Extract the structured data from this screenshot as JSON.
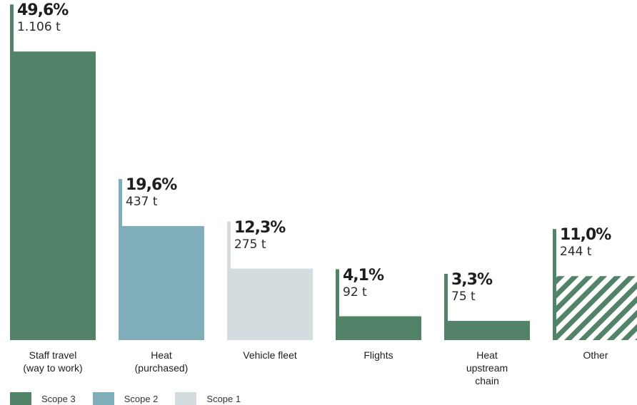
{
  "chart_data": {
    "type": "bar",
    "categories": [
      "Staff travel\n(way to work)",
      "Heat\n(purchased)",
      "Vehicle fleet",
      "Flights",
      "Heat\nupstream\nchain",
      "Other"
    ],
    "values": [
      49.6,
      19.6,
      12.3,
      4.1,
      3.3,
      11.0
    ],
    "percent_labels": [
      "49,6%",
      "19,6%",
      "12,3%",
      "4,1%",
      "3,3%",
      "11,0%"
    ],
    "tonnes_labels": [
      "1.106 t",
      "437 t",
      "275 t",
      "92 t",
      "75 t",
      "244 t"
    ],
    "scope": [
      "Scope 3",
      "Scope 2",
      "Scope 1",
      "Scope 3",
      "Scope 3",
      "Scope 3"
    ],
    "pattern": [
      "solid",
      "solid",
      "solid",
      "solid",
      "solid",
      "hatched"
    ],
    "ylim": [
      0,
      50
    ],
    "grid": false,
    "legend_position": "bottom-left"
  },
  "legend": [
    {
      "label": "Scope 3",
      "color": "#528268"
    },
    {
      "label": "Scope 2",
      "color": "#7fadba"
    },
    {
      "label": "Scope 1",
      "color": "#d3dde0"
    }
  ]
}
